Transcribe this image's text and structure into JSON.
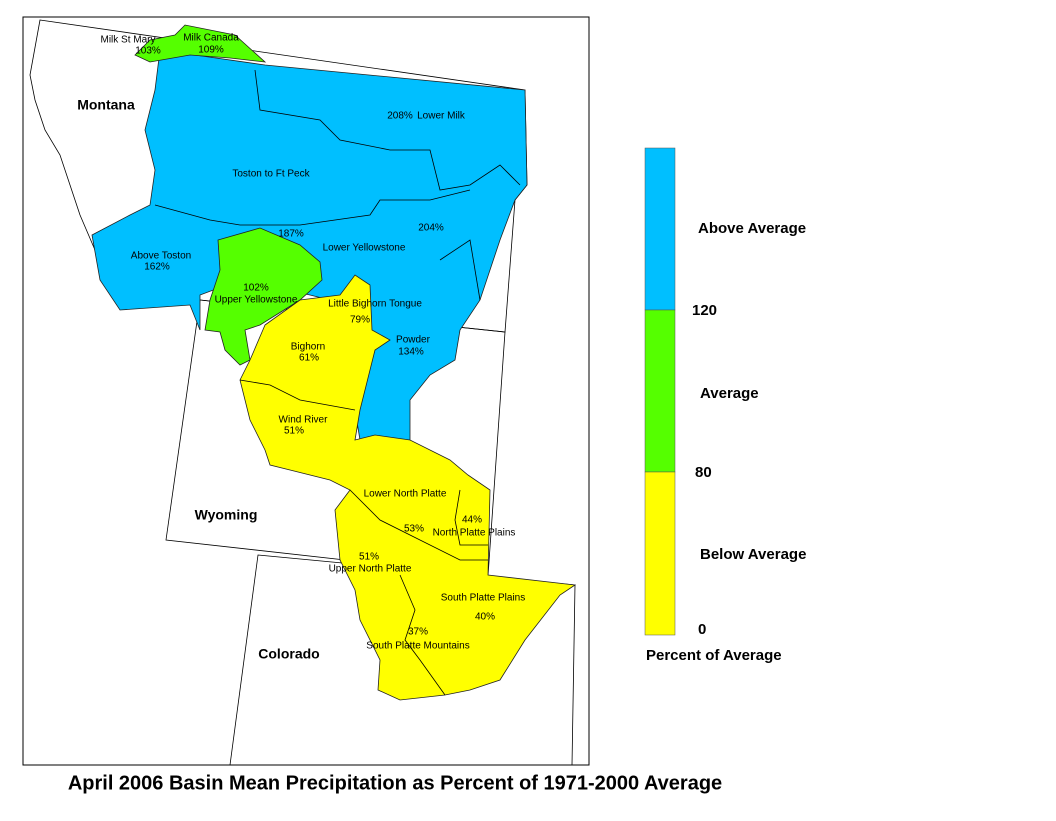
{
  "map": {
    "title": "April 2006 Basin Mean Precipitation as Percent of 1971-2000 Average",
    "states": [
      "Montana",
      "Wyoming",
      "Colorado"
    ],
    "basin_labels": [
      "Milk St Mary",
      "103%",
      "Milk Canada",
      "109%",
      "208%",
      "Lower Milk",
      "Toston to Ft Peck",
      "187%",
      "204%",
      "Lower Yellowstone",
      "Above Toston",
      "162%",
      "102%",
      "Upper Yellowstone",
      "Little Bighorn Tongue",
      "79%",
      "Powder",
      "134%",
      "Bighorn",
      "61%",
      "Wind River",
      "51%",
      "Lower North Platte",
      "53%",
      "44%",
      "North Platte Plains",
      "51%",
      "Upper North Platte",
      "South Platte Plains",
      "40%",
      "37%",
      "South Platte Mountains"
    ],
    "legend": {
      "title": "Percent of Average",
      "classes": [
        {
          "label": "Above Average",
          "color": "#00bfff"
        },
        {
          "label": "Average",
          "color": "#55ff00"
        },
        {
          "label": "Below Average",
          "color": "#ffff00"
        }
      ],
      "breaks": [
        120,
        80,
        0
      ]
    }
  }
}
